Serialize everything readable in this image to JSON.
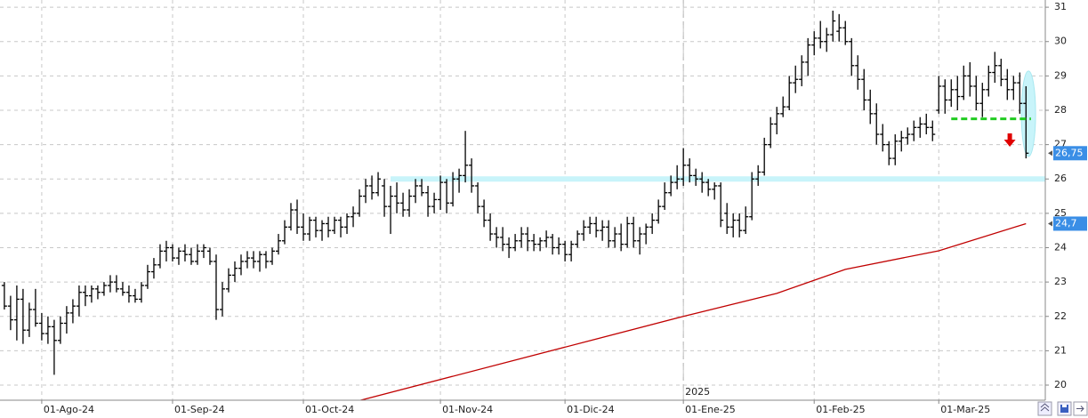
{
  "chart_data": {
    "type": "ohlc",
    "color": "#000000",
    "xlim": [
      -0.7,
      167.1
    ],
    "xticks": [
      {
        "value": 6,
        "label": "01-Ago-24"
      },
      {
        "value": 27,
        "label": "01-Sep-24"
      },
      {
        "value": 48,
        "label": "01-Oct-24"
      },
      {
        "value": 70,
        "label": "01-Nov-24"
      },
      {
        "value": 90,
        "label": "01-Dic-24"
      },
      {
        "value": 109,
        "label": "01-Ene-25"
      },
      {
        "value": 130,
        "label": "01-Feb-25"
      },
      {
        "value": 150,
        "label": "01-Mar-25"
      }
    ],
    "year_divider": {
      "x": 109,
      "label": "2025"
    },
    "ylim": [
      19.56,
      31.21
    ],
    "yticks": [
      20,
      21,
      22,
      23,
      24,
      25,
      26,
      27,
      28,
      29,
      30,
      31
    ],
    "grid": true,
    "open": [
      22.9,
      22.3,
      21.9,
      22.5,
      21.6,
      22.2,
      21.8,
      21.5,
      21.7,
      21.3,
      21.8,
      22.1,
      22.3,
      22.7,
      22.6,
      22.8,
      22.7,
      22.9,
      23.0,
      22.8,
      22.7,
      22.6,
      22.5,
      22.9,
      23.3,
      23.5,
      23.9,
      24.0,
      23.7,
      23.9,
      23.8,
      23.6,
      23.9,
      23.9,
      23.6,
      22.2,
      22.8,
      23.2,
      23.4,
      23.6,
      23.7,
      23.6,
      23.8,
      23.6,
      23.9,
      24.2,
      24.6,
      25.1,
      24.6,
      24.4,
      24.8,
      24.5,
      24.7,
      24.5,
      24.8,
      24.6,
      24.9,
      25.0,
      25.5,
      25.8,
      25.6,
      25.8,
      25.2,
      25.5,
      25.3,
      25.1,
      25.5,
      25.8,
      25.6,
      25.2,
      25.4,
      25.9,
      25.3,
      26.0,
      26.1,
      26.4,
      25.8,
      25.2,
      24.8,
      24.4,
      24.3,
      24.1,
      24.0,
      24.2,
      24.4,
      24.2,
      24.1,
      24.2,
      24.3,
      24.0,
      24.1,
      23.8,
      24.1,
      24.4,
      24.6,
      24.7,
      24.5,
      24.6,
      24.2,
      24.4,
      24.1,
      24.7,
      24.2,
      24.4,
      24.6,
      24.8,
      25.2,
      25.6,
      25.9,
      26.0,
      26.4,
      26.1,
      26.0,
      25.9,
      25.7,
      25.8,
      25.0,
      24.6,
      24.8,
      24.5,
      24.9,
      26.0,
      26.2,
      27.0,
      27.6,
      27.9,
      28.1,
      28.8,
      28.9,
      29.4,
      29.9,
      30.1,
      30.0,
      30.2,
      30.3,
      30.4,
      30.0,
      29.3,
      28.9,
      28.3,
      27.9,
      27.3,
      27.0,
      26.6,
      27.1,
      27.2,
      27.3,
      27.5,
      27.6,
      27.5,
      28.0,
      28.7,
      28.3,
      28.6,
      28.4,
      29.0,
      28.7,
      28.2,
      28.6,
      29.1,
      29.3,
      28.9,
      28.6,
      28.8,
      28.2
    ],
    "high": [
      23.0,
      22.6,
      22.9,
      22.8,
      22.4,
      22.8,
      22.1,
      22.0,
      21.9,
      22.0,
      22.3,
      22.5,
      22.9,
      22.9,
      22.9,
      22.9,
      23.0,
      23.2,
      23.2,
      23.0,
      22.9,
      22.8,
      23.0,
      23.5,
      23.7,
      24.1,
      24.2,
      24.1,
      24.0,
      24.1,
      24.0,
      24.1,
      24.1,
      24.0,
      23.8,
      23.0,
      23.4,
      23.6,
      23.8,
      23.9,
      23.9,
      23.9,
      23.9,
      24.0,
      24.4,
      24.8,
      25.3,
      25.4,
      25.0,
      24.9,
      24.9,
      24.8,
      24.9,
      24.9,
      24.9,
      25.0,
      25.2,
      25.7,
      26.0,
      26.1,
      26.2,
      26.0,
      25.8,
      25.9,
      25.6,
      25.7,
      26.0,
      26.0,
      25.8,
      25.6,
      26.1,
      26.0,
      26.2,
      26.3,
      27.4,
      26.6,
      25.9,
      25.4,
      25.0,
      24.6,
      24.6,
      24.3,
      24.4,
      24.6,
      24.6,
      24.4,
      24.3,
      24.5,
      24.4,
      24.3,
      24.2,
      24.2,
      24.5,
      24.8,
      24.9,
      24.9,
      24.8,
      24.8,
      24.6,
      24.7,
      24.9,
      24.9,
      24.6,
      24.7,
      25.0,
      25.4,
      25.9,
      26.1,
      26.4,
      26.9,
      26.6,
      26.3,
      26.2,
      26.0,
      25.9,
      25.9,
      25.3,
      25.0,
      25.0,
      25.2,
      26.2,
      26.4,
      27.2,
      27.8,
      28.1,
      28.4,
      29.0,
      29.3,
      29.6,
      30.1,
      30.3,
      30.6,
      30.4,
      30.9,
      30.8,
      30.6,
      30.1,
      29.6,
      29.2,
      28.6,
      28.2,
      27.6,
      27.1,
      27.3,
      27.4,
      27.5,
      27.7,
      27.8,
      27.9,
      27.7,
      29.0,
      28.9,
      28.9,
      29.0,
      29.3,
      29.4,
      29.0,
      28.8,
      29.3,
      29.7,
      29.5,
      29.2,
      29.0,
      29.1,
      28.7
    ],
    "low": [
      22.2,
      21.6,
      21.3,
      21.2,
      21.4,
      21.7,
      21.3,
      21.2,
      20.3,
      21.2,
      21.5,
      21.8,
      22.0,
      22.3,
      22.4,
      22.5,
      22.6,
      22.7,
      22.7,
      22.6,
      22.4,
      22.4,
      22.4,
      22.8,
      23.1,
      23.4,
      23.6,
      23.6,
      23.5,
      23.6,
      23.5,
      23.5,
      23.7,
      23.5,
      21.9,
      22.0,
      22.7,
      23.0,
      23.2,
      23.4,
      23.4,
      23.3,
      23.4,
      23.5,
      23.8,
      24.1,
      24.5,
      24.4,
      24.2,
      24.2,
      24.3,
      24.2,
      24.3,
      24.4,
      24.3,
      24.4,
      24.6,
      24.9,
      25.3,
      25.4,
      25.5,
      24.9,
      24.4,
      25.0,
      24.9,
      24.9,
      25.3,
      25.5,
      24.9,
      25.0,
      25.1,
      25.0,
      25.2,
      25.6,
      25.9,
      25.6,
      25.0,
      24.6,
      24.2,
      24.0,
      23.9,
      23.7,
      23.9,
      24.0,
      23.9,
      23.9,
      23.9,
      24.0,
      23.8,
      23.8,
      23.6,
      23.6,
      24.0,
      24.2,
      24.4,
      24.3,
      24.2,
      24.0,
      24.0,
      23.9,
      24.0,
      24.0,
      23.8,
      24.1,
      24.4,
      24.7,
      25.1,
      25.5,
      25.7,
      25.8,
      25.9,
      25.8,
      25.6,
      25.5,
      25.4,
      24.6,
      24.4,
      24.3,
      24.3,
      24.4,
      24.8,
      25.8,
      26.1,
      26.9,
      27.3,
      27.8,
      28.0,
      28.5,
      28.7,
      29.0,
      29.6,
      29.8,
      29.7,
      30.0,
      30.0,
      29.9,
      29.0,
      28.6,
      28.0,
      27.6,
      27.0,
      26.8,
      26.4,
      26.4,
      26.8,
      27.0,
      27.1,
      27.2,
      27.3,
      27.1,
      27.9,
      27.9,
      28.1,
      28.0,
      28.3,
      28.4,
      28.0,
      27.8,
      28.4,
      28.8,
      28.7,
      28.3,
      28.3,
      27.9,
      26.6
    ],
    "close": [
      22.3,
      21.9,
      22.5,
      21.6,
      22.2,
      21.8,
      21.5,
      21.7,
      21.3,
      21.8,
      22.1,
      22.3,
      22.7,
      22.6,
      22.8,
      22.7,
      22.9,
      23.0,
      22.8,
      22.7,
      22.6,
      22.5,
      22.9,
      23.3,
      23.5,
      23.9,
      24.0,
      23.7,
      23.9,
      23.8,
      23.6,
      23.9,
      24.0,
      23.6,
      22.2,
      22.8,
      23.2,
      23.4,
      23.6,
      23.7,
      23.6,
      23.8,
      23.6,
      23.9,
      24.2,
      24.6,
      25.1,
      24.6,
      24.4,
      24.8,
      24.5,
      24.7,
      24.5,
      24.8,
      24.6,
      24.9,
      25.0,
      25.5,
      25.8,
      25.6,
      26.0,
      25.2,
      25.5,
      25.3,
      25.1,
      25.5,
      25.8,
      25.6,
      25.2,
      25.4,
      25.9,
      25.3,
      26.0,
      26.1,
      26.4,
      25.8,
      25.2,
      24.8,
      24.4,
      24.3,
      24.1,
      24.0,
      24.2,
      24.4,
      24.2,
      24.1,
      24.2,
      24.3,
      24.0,
      24.1,
      23.8,
      24.1,
      24.4,
      24.6,
      24.7,
      24.5,
      24.6,
      24.2,
      24.4,
      24.1,
      24.7,
      24.2,
      24.4,
      24.6,
      24.8,
      25.2,
      25.6,
      25.9,
      26.0,
      26.4,
      26.1,
      26.0,
      25.9,
      25.7,
      25.8,
      24.8,
      24.6,
      24.8,
      24.5,
      24.9,
      26.0,
      26.2,
      27.0,
      27.6,
      27.9,
      28.1,
      28.8,
      28.9,
      29.4,
      29.9,
      30.1,
      30.0,
      30.2,
      30.6,
      30.4,
      30.0,
      29.3,
      28.9,
      28.3,
      27.9,
      27.3,
      27.0,
      26.6,
      27.1,
      27.2,
      27.3,
      27.5,
      27.6,
      27.5,
      27.3,
      28.7,
      28.3,
      28.6,
      28.4,
      29.0,
      28.7,
      28.2,
      28.6,
      29.1,
      29.3,
      28.9,
      28.6,
      28.8,
      28.2,
      26.75
    ],
    "ma": {
      "type": "line",
      "color": "#c00000",
      "x": [
        57,
        109,
        124,
        135,
        150,
        164
      ],
      "values": [
        19.55,
        22.0,
        22.67,
        23.37,
        23.91,
        24.7
      ]
    },
    "support_level": {
      "value": 26,
      "color": "#c8f4fa"
    },
    "stop_level": {
      "value": 27.75,
      "color": "#22cc22"
    },
    "last_price": {
      "value": 26.75,
      "label": "26,75"
    },
    "ma_last": {
      "value": 24.7,
      "label": "24,7"
    }
  }
}
